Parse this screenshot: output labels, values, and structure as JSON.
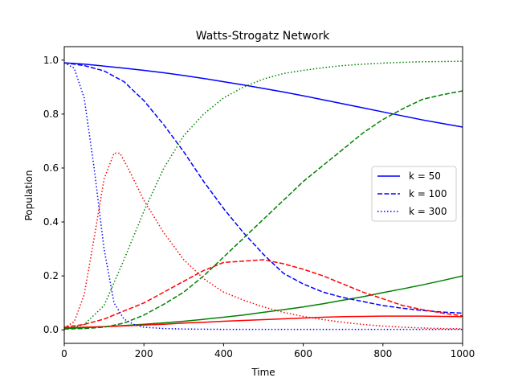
{
  "chart_data": {
    "type": "line",
    "title": "Watts-Strogatz Network",
    "xlabel": "Time",
    "ylabel": "Population",
    "xlim": [
      0,
      1000
    ],
    "ylim": [
      -0.05,
      1.05
    ],
    "xticks": [
      "0",
      "200",
      "400",
      "600",
      "800",
      "1000"
    ],
    "yticks": [
      "0.0",
      "0.2",
      "0.4",
      "0.6",
      "0.8",
      "1.0"
    ],
    "xtick_values": [
      0,
      200,
      400,
      600,
      800,
      1000
    ],
    "ytick_values": [
      0.0,
      0.2,
      0.4,
      0.6,
      0.8,
      1.0
    ],
    "grid": false,
    "legend_position": "center-right",
    "legend": [
      {
        "label": "k = 50",
        "style": "solid"
      },
      {
        "label": "k = 100",
        "style": "dashed"
      },
      {
        "label": "k = 300",
        "style": "dotted"
      }
    ],
    "series": [
      {
        "group": "k = 50",
        "color": "#0000ff",
        "style": "solid",
        "x": [
          0,
          50,
          100,
          150,
          200,
          250,
          300,
          350,
          400,
          450,
          500,
          550,
          600,
          650,
          700,
          750,
          800,
          850,
          900,
          950,
          1000
        ],
        "y": [
          0.99,
          0.985,
          0.978,
          0.97,
          0.962,
          0.953,
          0.943,
          0.932,
          0.92,
          0.908,
          0.895,
          0.882,
          0.868,
          0.853,
          0.838,
          0.823,
          0.808,
          0.793,
          0.778,
          0.765,
          0.752
        ]
      },
      {
        "group": "k = 50",
        "color": "#008000",
        "style": "solid",
        "x": [
          0,
          50,
          100,
          150,
          200,
          250,
          300,
          350,
          400,
          450,
          500,
          550,
          600,
          650,
          700,
          750,
          800,
          850,
          900,
          950,
          1000
        ],
        "y": [
          0.005,
          0.008,
          0.012,
          0.016,
          0.021,
          0.026,
          0.032,
          0.039,
          0.047,
          0.055,
          0.065,
          0.075,
          0.085,
          0.097,
          0.11,
          0.123,
          0.138,
          0.152,
          0.167,
          0.183,
          0.2
        ]
      },
      {
        "group": "k = 50",
        "color": "#ff0000",
        "style": "solid",
        "x": [
          0,
          50,
          100,
          150,
          200,
          250,
          300,
          350,
          400,
          450,
          500,
          550,
          600,
          650,
          700,
          750,
          800,
          850,
          900,
          950,
          1000
        ],
        "y": [
          0.008,
          0.01,
          0.012,
          0.015,
          0.018,
          0.021,
          0.025,
          0.028,
          0.032,
          0.035,
          0.038,
          0.041,
          0.044,
          0.047,
          0.049,
          0.05,
          0.051,
          0.051,
          0.051,
          0.05,
          0.049
        ]
      },
      {
        "group": "k = 100",
        "color": "#0000ff",
        "style": "dashed",
        "x": [
          0,
          50,
          100,
          150,
          200,
          250,
          300,
          350,
          400,
          450,
          500,
          550,
          600,
          650,
          700,
          750,
          800,
          850,
          900,
          950,
          1000
        ],
        "y": [
          0.99,
          0.98,
          0.96,
          0.92,
          0.85,
          0.76,
          0.66,
          0.55,
          0.45,
          0.36,
          0.28,
          0.21,
          0.17,
          0.14,
          0.12,
          0.105,
          0.09,
          0.08,
          0.072,
          0.066,
          0.062
        ]
      },
      {
        "group": "k = 100",
        "color": "#008000",
        "style": "dashed",
        "x": [
          0,
          50,
          100,
          150,
          200,
          250,
          300,
          350,
          400,
          450,
          500,
          550,
          600,
          650,
          700,
          750,
          800,
          850,
          900,
          950,
          1000
        ],
        "y": [
          0.003,
          0.005,
          0.01,
          0.025,
          0.055,
          0.095,
          0.14,
          0.2,
          0.27,
          0.34,
          0.41,
          0.48,
          0.55,
          0.61,
          0.67,
          0.73,
          0.78,
          0.82,
          0.855,
          0.872,
          0.886
        ]
      },
      {
        "group": "k = 100",
        "color": "#ff0000",
        "style": "dashed",
        "x": [
          0,
          50,
          100,
          150,
          200,
          250,
          300,
          350,
          400,
          450,
          500,
          550,
          600,
          650,
          700,
          750,
          800,
          850,
          900,
          950,
          1000
        ],
        "y": [
          0.01,
          0.02,
          0.04,
          0.07,
          0.1,
          0.14,
          0.18,
          0.22,
          0.25,
          0.255,
          0.26,
          0.245,
          0.225,
          0.2,
          0.17,
          0.14,
          0.115,
          0.09,
          0.075,
          0.062,
          0.052
        ]
      },
      {
        "group": "k = 300",
        "color": "#0000ff",
        "style": "dotted",
        "x": [
          0,
          25,
          50,
          75,
          100,
          125,
          150,
          175,
          200,
          250,
          300,
          400,
          500,
          600,
          700,
          800,
          900,
          1000
        ],
        "y": [
          0.99,
          0.97,
          0.86,
          0.6,
          0.3,
          0.1,
          0.04,
          0.02,
          0.01,
          0.005,
          0.003,
          0.002,
          0.002,
          0.002,
          0.002,
          0.002,
          0.002,
          0.002
        ]
      },
      {
        "group": "k = 300",
        "color": "#008000",
        "style": "dotted",
        "x": [
          0,
          50,
          100,
          150,
          200,
          250,
          300,
          350,
          400,
          450,
          500,
          550,
          600,
          650,
          700,
          750,
          800,
          850,
          900,
          950,
          1000
        ],
        "y": [
          0.002,
          0.02,
          0.09,
          0.26,
          0.44,
          0.6,
          0.72,
          0.8,
          0.86,
          0.9,
          0.93,
          0.95,
          0.962,
          0.972,
          0.98,
          0.985,
          0.989,
          0.992,
          0.994,
          0.995,
          0.996
        ]
      },
      {
        "group": "k = 300",
        "color": "#ff0000",
        "style": "dotted",
        "x": [
          0,
          25,
          50,
          75,
          100,
          125,
          140,
          160,
          200,
          250,
          300,
          350,
          400,
          450,
          500,
          550,
          600,
          650,
          700,
          750,
          800,
          850,
          900,
          950,
          1000
        ],
        "y": [
          0.008,
          0.03,
          0.13,
          0.34,
          0.56,
          0.655,
          0.655,
          0.6,
          0.48,
          0.36,
          0.26,
          0.19,
          0.14,
          0.11,
          0.085,
          0.065,
          0.05,
          0.038,
          0.028,
          0.02,
          0.014,
          0.01,
          0.007,
          0.005,
          0.004
        ]
      }
    ]
  }
}
